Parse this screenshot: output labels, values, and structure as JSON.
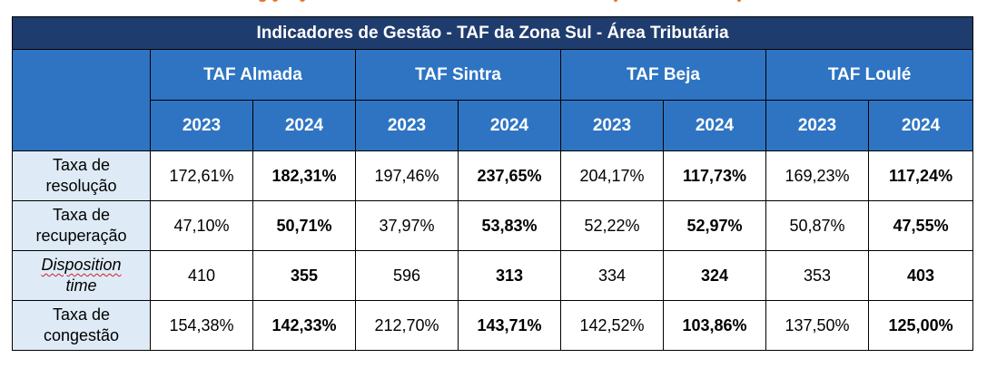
{
  "table": {
    "title": "Indicadores de Gestão - TAF da Zona Sul - Área Tributária",
    "tafs": [
      "TAF Almada",
      "TAF Sintra",
      "TAF Beja",
      "TAF Loulé"
    ],
    "years": [
      "2023",
      "2024"
    ],
    "rows": [
      {
        "label": [
          "Taxa de",
          "resolução"
        ],
        "italic": false,
        "values": [
          "172,61%",
          "182,31%",
          "197,46%",
          "237,65%",
          "204,17%",
          "117,73%",
          "169,23%",
          "117,24%"
        ]
      },
      {
        "label": [
          "Taxa de",
          "recuperação"
        ],
        "italic": false,
        "values": [
          "47,10%",
          "50,71%",
          "37,97%",
          "53,83%",
          "52,22%",
          "52,97%",
          "50,87%",
          "47,55%"
        ]
      },
      {
        "label": [
          "Disposition",
          "time"
        ],
        "italic": true,
        "values": [
          "410",
          "355",
          "596",
          "313",
          "334",
          "324",
          "353",
          "403"
        ]
      },
      {
        "label": [
          "Taxa de",
          "congestão"
        ],
        "italic": false,
        "values": [
          "154,38%",
          "142,33%",
          "212,70%",
          "143,71%",
          "142,52%",
          "103,86%",
          "137,50%",
          "125,00%"
        ]
      }
    ]
  },
  "colors": {
    "title_bg": "#1f3c6e",
    "header_bg": "#2e74c3",
    "label_bg": "#deebf7",
    "accent_strip": "#e8742a"
  }
}
